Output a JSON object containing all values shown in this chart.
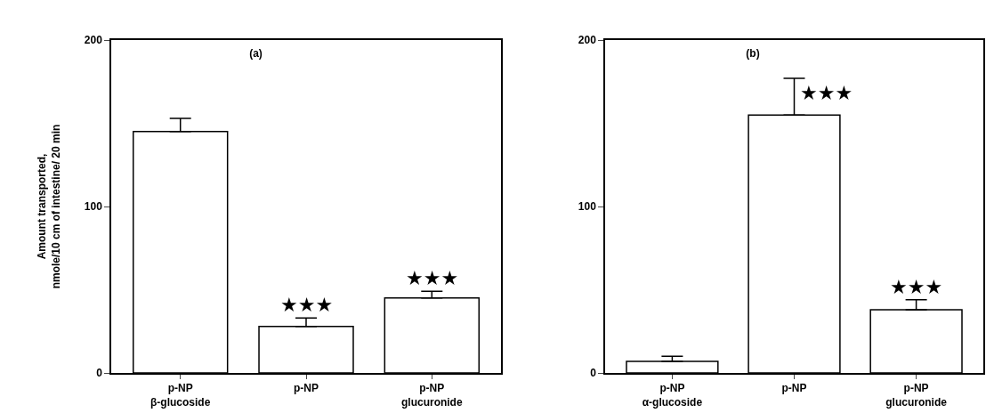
{
  "chart_data": [
    {
      "type": "bar",
      "title": "(a)",
      "ylabel": "Amount transported,\nnmole/10 cm of intestine/ 20 min",
      "categories": [
        "p-NP\nβ-glucoside",
        "p-NP",
        "p-NP\nglucuronide"
      ],
      "values": [
        145,
        28,
        45
      ],
      "errors": [
        [
          145,
          153
        ],
        [
          28,
          33
        ],
        [
          45,
          49
        ]
      ],
      "color": "#ffffff",
      "ylim": [
        0,
        200
      ],
      "yticks": [
        0,
        100,
        200
      ],
      "grid": false,
      "legend": false,
      "annotations": [
        {
          "text": "★★★",
          "x": "p-NP",
          "y": 28
        },
        {
          "text": "★★★",
          "x": "p-NP\nglucuronide",
          "y": 45
        }
      ]
    },
    {
      "type": "bar",
      "title": "(b)",
      "categories": [
        "p-NP\nα-glucoside",
        "p-NP",
        "p-NP\nglucuronide"
      ],
      "values": [
        7,
        155,
        38
      ],
      "errors": [
        [
          7,
          10
        ],
        [
          155,
          177
        ],
        [
          38,
          44
        ]
      ],
      "color": "#ffffff",
      "ylim": [
        0,
        200
      ],
      "yticks": [
        0,
        100,
        200
      ],
      "grid": false,
      "legend": false,
      "annotations": [
        {
          "text": "★★★",
          "x": "p-NP",
          "y": 155
        },
        {
          "text": "★★★",
          "x": "p-NP\nglucuronide",
          "y": 38
        }
      ]
    }
  ]
}
